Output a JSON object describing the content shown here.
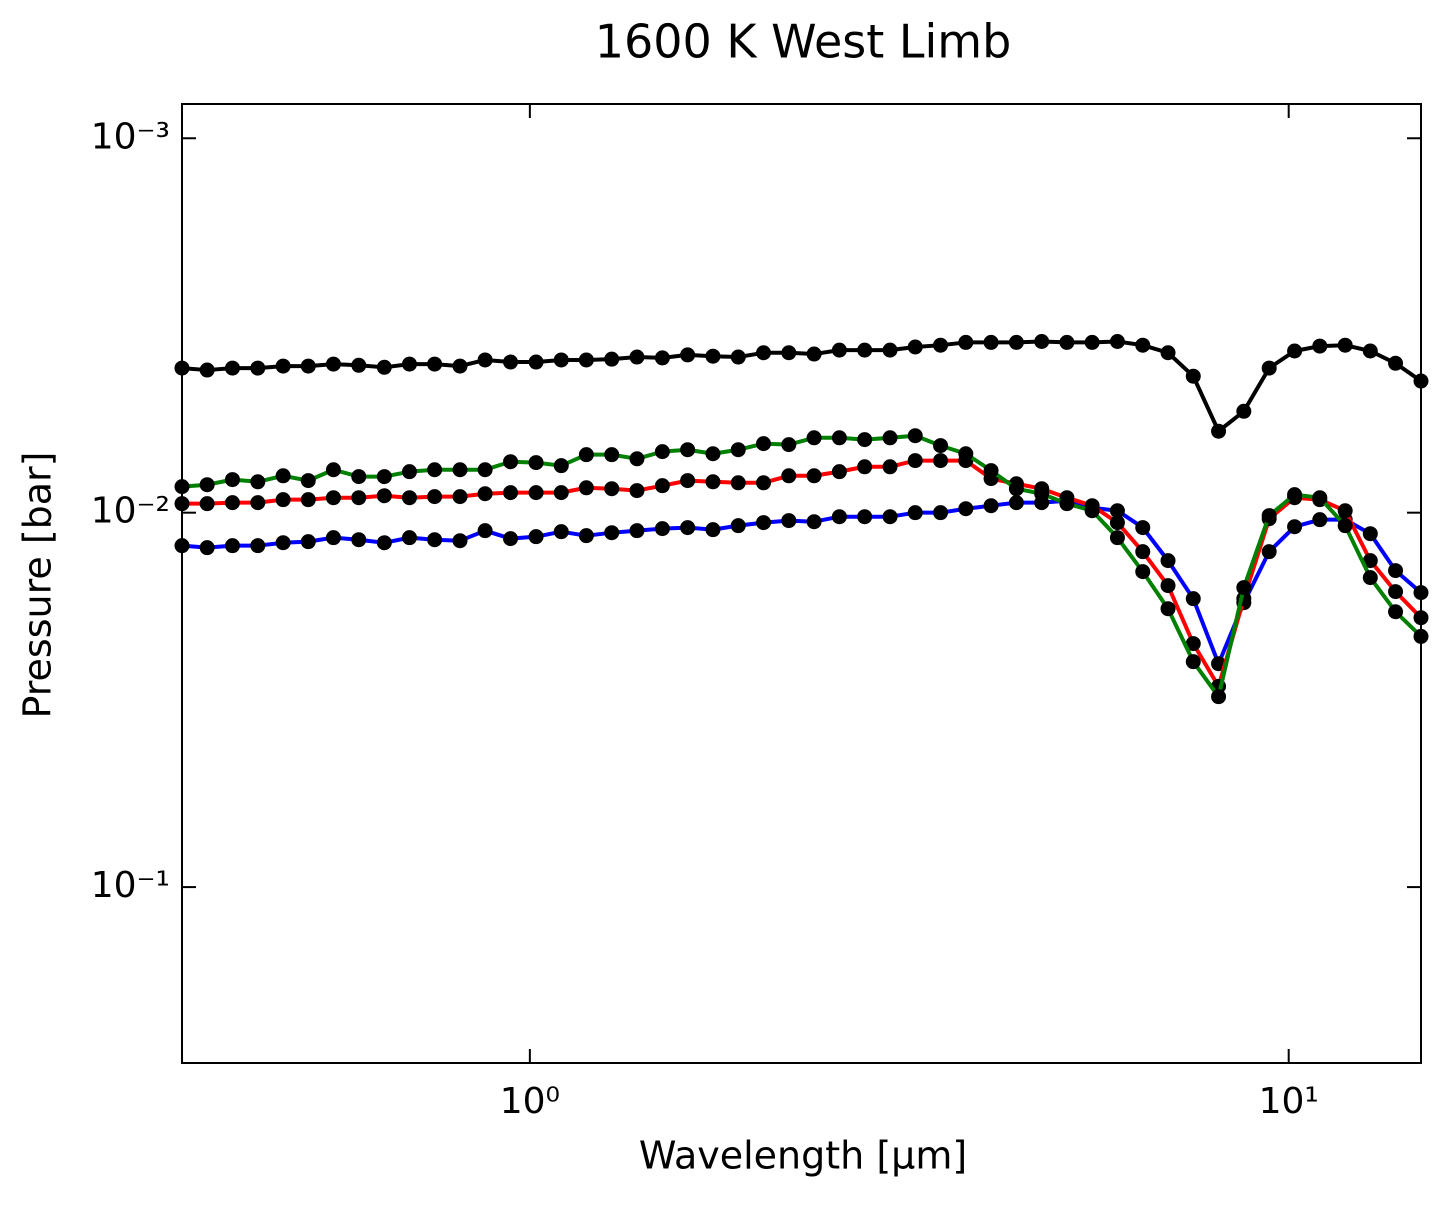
{
  "chart_data": {
    "type": "line",
    "title": "1600 K West Limb",
    "x_label": "Wavelength [μm]",
    "y_label": "Pressure [bar]",
    "x_log": true,
    "y_log": true,
    "xlim": [
      0.348,
      14.94
    ],
    "ylim": [
      0.295,
      0.00081
    ],
    "xticks": [
      {
        "value": 1,
        "label": "10⁰"
      },
      {
        "value": 10,
        "label": "10¹"
      }
    ],
    "yticks": [
      {
        "value": 0.001,
        "label": "10⁻³"
      },
      {
        "value": 0.01,
        "label": "10⁻²"
      },
      {
        "value": 0.1,
        "label": "10⁻¹"
      }
    ],
    "marker_color": "#000000",
    "x": [
      0.348,
      0.3756,
      0.4056,
      0.438,
      0.473,
      0.5105,
      0.551,
      0.595,
      0.643,
      0.694,
      0.749,
      0.809,
      0.873,
      0.943,
      1.019,
      1.1,
      1.187,
      1.282,
      1.384,
      1.495,
      1.614,
      1.743,
      1.882,
      2.032,
      2.194,
      2.369,
      2.558,
      2.762,
      2.983,
      3.22,
      3.477,
      3.754,
      4.053,
      4.377,
      4.726,
      5.102,
      5.508,
      5.947,
      6.422,
      6.934,
      7.486,
      8.083,
      8.727,
      9.425,
      10.18,
      10.99,
      11.87,
      12.81,
      13.83,
      14.94
    ],
    "series": [
      {
        "color": "#000000",
        "values": [
          0.00411,
          0.00416,
          0.00411,
          0.00411,
          0.00406,
          0.00406,
          0.00401,
          0.00404,
          0.00409,
          0.00401,
          0.00401,
          0.00406,
          0.00391,
          0.00396,
          0.00396,
          0.00391,
          0.00391,
          0.00389,
          0.00384,
          0.00386,
          0.00379,
          0.00382,
          0.00384,
          0.00374,
          0.00374,
          0.00377,
          0.00368,
          0.00368,
          0.00368,
          0.00361,
          0.00357,
          0.00351,
          0.00351,
          0.00351,
          0.00349,
          0.00351,
          0.00351,
          0.00349,
          0.00357,
          0.00374,
          0.00432,
          0.00606,
          0.00536,
          0.00411,
          0.0037,
          0.00359,
          0.00357,
          0.0037,
          0.00399,
          0.00445
        ]
      },
      {
        "color": "#0000ff",
        "values": [
          0.01225,
          0.0124,
          0.01225,
          0.01225,
          0.01203,
          0.01195,
          0.01166,
          0.01181,
          0.01203,
          0.01166,
          0.01181,
          0.01188,
          0.01117,
          0.01173,
          0.01159,
          0.01124,
          0.01152,
          0.01131,
          0.01117,
          0.01103,
          0.01096,
          0.0111,
          0.01083,
          0.01063,
          0.0105,
          0.01057,
          0.01025,
          0.01025,
          0.01025,
          0.01,
          0.01,
          0.00976,
          0.00958,
          0.0094,
          0.0094,
          0.00929,
          0.0097,
          0.00988,
          0.01096,
          0.01343,
          0.01697,
          0.02532,
          0.0174,
          0.01271,
          0.0109,
          0.01044,
          0.01044,
          0.01138,
          0.01428,
          0.01635
        ]
      },
      {
        "color": "#ff0000",
        "values": [
          0.00946,
          0.00946,
          0.0094,
          0.0094,
          0.00923,
          0.00923,
          0.00912,
          0.00912,
          0.00901,
          0.00912,
          0.00906,
          0.00906,
          0.0089,
          0.00884,
          0.00884,
          0.00884,
          0.00858,
          0.00863,
          0.00873,
          0.00847,
          0.00821,
          0.00827,
          0.00832,
          0.00832,
          0.00797,
          0.00797,
          0.00777,
          0.00754,
          0.00754,
          0.00726,
          0.00726,
          0.00726,
          0.00811,
          0.00837,
          0.00863,
          0.00912,
          0.00958,
          0.01063,
          0.01271,
          0.01566,
          0.02237,
          0.0291,
          0.01697,
          0.01038,
          0.00912,
          0.00923,
          0.00988,
          0.01343,
          0.01625,
          0.01908
        ]
      },
      {
        "color": "#008000",
        "values": [
          0.00852,
          0.00842,
          0.00816,
          0.00827,
          0.00797,
          0.00821,
          0.00768,
          0.00801,
          0.00801,
          0.00777,
          0.00768,
          0.00768,
          0.00768,
          0.00731,
          0.00735,
          0.00749,
          0.007,
          0.007,
          0.00718,
          0.00687,
          0.00679,
          0.00696,
          0.00679,
          0.00654,
          0.00658,
          0.00631,
          0.00631,
          0.00638,
          0.00631,
          0.00623,
          0.00662,
          0.00696,
          0.00772,
          0.00863,
          0.0089,
          0.00946,
          0.00988,
          0.01166,
          0.01437,
          0.01805,
          0.025,
          0.031,
          0.01585,
          0.01018,
          0.00895,
          0.00912,
          0.01083,
          0.01491,
          0.01839,
          0.0214
        ]
      }
    ]
  }
}
